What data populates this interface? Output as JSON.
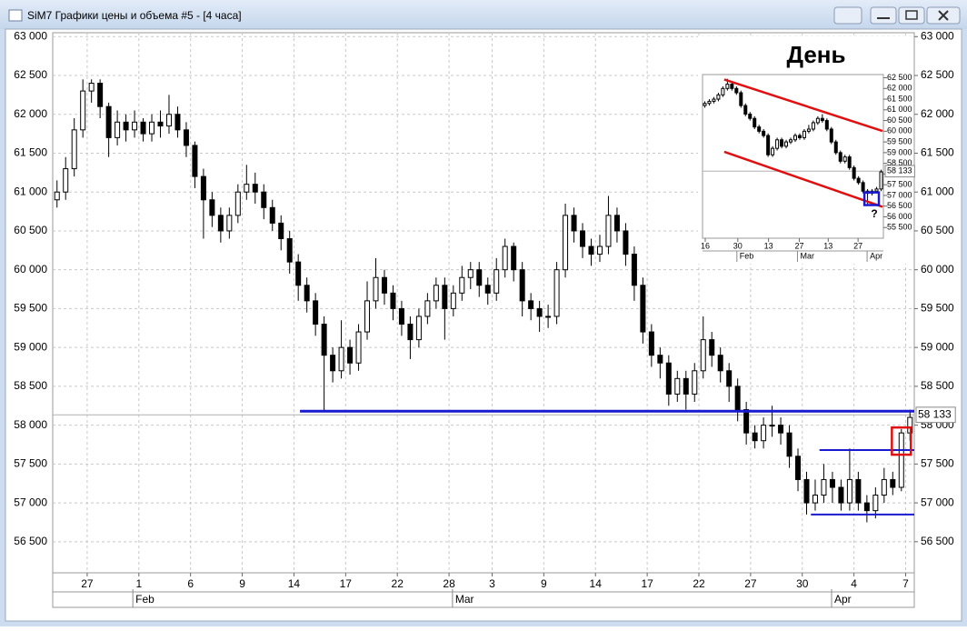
{
  "window": {
    "title": "SiM7 Графики цены и объема #5 - [4 часа]"
  },
  "chart_data": [
    {
      "type": "candlestick",
      "open": [
        60900,
        61000,
        61300,
        61800,
        62300,
        62400,
        62100,
        61700,
        61900,
        61800,
        61900,
        61750,
        61900,
        61850,
        62000,
        61800,
        61600,
        61200,
        60900,
        60700,
        60500,
        60700,
        61000,
        61100,
        61000,
        60800,
        60600,
        60400,
        60100,
        59800,
        59600,
        59300,
        58900,
        58700,
        59000,
        58800,
        59200,
        59600,
        59900,
        59700,
        59500,
        59300,
        59100,
        59400,
        59600,
        59800,
        59500,
        59700,
        59900,
        60000,
        59800,
        59700,
        60000,
        60300,
        60000,
        59600,
        59500,
        59400,
        59400,
        60000,
        60700,
        60500,
        60300,
        60200,
        60300,
        60700,
        60500,
        60200,
        59800,
        59200,
        58900,
        58800,
        58400,
        58600,
        58400,
        58700,
        59100,
        58900,
        58700,
        58500,
        58200,
        57900,
        57800,
        58000,
        58000,
        57900,
        57600,
        57300,
        57000,
        57100,
        57300,
        57200,
        57000,
        57300,
        57000,
        56900,
        57100,
        57300,
        57200,
        57900
      ],
      "high": [
        61150,
        61450,
        61950,
        62450,
        62450,
        62450,
        62150,
        62050,
        62000,
        62050,
        61950,
        62000,
        62050,
        62250,
        62100,
        61900,
        61650,
        61300,
        61000,
        60800,
        60800,
        61100,
        61350,
        61250,
        61100,
        60900,
        60700,
        60500,
        60200,
        59900,
        59700,
        59400,
        59000,
        59350,
        59100,
        59300,
        59850,
        60150,
        60000,
        59800,
        59600,
        59400,
        59500,
        59700,
        59900,
        59900,
        59800,
        60050,
        60100,
        60100,
        59900,
        60150,
        60400,
        60350,
        60100,
        59700,
        59600,
        59550,
        60100,
        60850,
        60800,
        60600,
        60400,
        60450,
        60950,
        60800,
        60600,
        60300,
        59900,
        59300,
        59000,
        58900,
        58700,
        58700,
        58800,
        59400,
        59200,
        59000,
        58800,
        58600,
        58300,
        58000,
        58100,
        58250,
        58100,
        58000,
        57700,
        57400,
        57300,
        57500,
        57400,
        57300,
        57700,
        57400,
        57100,
        57200,
        57450,
        57400,
        57950,
        58200
      ],
      "low": [
        60800,
        60900,
        61200,
        61700,
        62150,
        61950,
        61450,
        61600,
        61650,
        61700,
        61650,
        61650,
        61700,
        61750,
        61700,
        61450,
        61050,
        60400,
        60550,
        60350,
        60400,
        60600,
        60900,
        60850,
        60650,
        60500,
        60250,
        59950,
        59600,
        59450,
        59150,
        58180,
        58550,
        58600,
        58650,
        58700,
        59100,
        59500,
        59550,
        59350,
        59150,
        58850,
        59000,
        59300,
        59500,
        59100,
        59400,
        59600,
        59750,
        59650,
        59550,
        59600,
        59900,
        59850,
        59400,
        59350,
        59200,
        59250,
        59300,
        59900,
        60350,
        60150,
        60050,
        60100,
        60200,
        60350,
        60050,
        59600,
        59050,
        58750,
        58600,
        58250,
        58300,
        58200,
        58300,
        58600,
        58750,
        58550,
        58300,
        58050,
        57750,
        57700,
        57700,
        57850,
        57750,
        57450,
        57150,
        56850,
        56900,
        57000,
        57000,
        56900,
        56900,
        56900,
        56750,
        56800,
        57000,
        57100,
        57150,
        57800
      ],
      "close": [
        61000,
        61300,
        61800,
        62300,
        62400,
        62100,
        61700,
        61900,
        61800,
        61900,
        61750,
        61900,
        61850,
        62000,
        61800,
        61600,
        61200,
        60900,
        60700,
        60500,
        60700,
        61000,
        61100,
        61000,
        60800,
        60600,
        60400,
        60100,
        59800,
        59600,
        59300,
        58900,
        58700,
        59000,
        58800,
        59200,
        59600,
        59900,
        59700,
        59500,
        59300,
        59100,
        59400,
        59600,
        59800,
        59500,
        59700,
        59900,
        60000,
        59800,
        59700,
        60000,
        60300,
        60000,
        59600,
        59500,
        59400,
        59400,
        60000,
        60700,
        60500,
        60300,
        60200,
        60300,
        60700,
        60500,
        60200,
        59800,
        59200,
        58900,
        58800,
        58400,
        58600,
        58400,
        58700,
        59100,
        58900,
        58700,
        58500,
        58200,
        57900,
        57800,
        58000,
        58000,
        57900,
        57600,
        57300,
        57000,
        57100,
        57300,
        57200,
        57000,
        57300,
        57000,
        56900,
        57100,
        57300,
        57200,
        57900,
        58100
      ],
      "xlim": [
        0,
        100
      ],
      "ylim": [
        56100,
        63050
      ],
      "yticks": [
        {
          "value": 56500,
          "label": "56 500"
        },
        {
          "value": 57000,
          "label": "57 000"
        },
        {
          "value": 57500,
          "label": "57 500"
        },
        {
          "value": 58000,
          "label": "58 000"
        },
        {
          "value": 58500,
          "label": "58 500"
        },
        {
          "value": 59000,
          "label": "59 000"
        },
        {
          "value": 59500,
          "label": "59 500"
        },
        {
          "value": 60000,
          "label": "60 000"
        },
        {
          "value": 60500,
          "label": "60 500"
        },
        {
          "value": 61000,
          "label": "61 000"
        },
        {
          "value": 61500,
          "label": "61 500"
        },
        {
          "value": 62000,
          "label": "62 000"
        },
        {
          "value": 62500,
          "label": "62 500"
        },
        {
          "value": 63000,
          "label": "63 000"
        }
      ],
      "xticks": [
        {
          "value": 4,
          "label": "27"
        },
        {
          "value": 10,
          "label": "1"
        },
        {
          "value": 16,
          "label": "6"
        },
        {
          "value": 22,
          "label": "9"
        },
        {
          "value": 28,
          "label": "14"
        },
        {
          "value": 34,
          "label": "17"
        },
        {
          "value": 40,
          "label": "22"
        },
        {
          "value": 46,
          "label": "28"
        },
        {
          "value": 51,
          "label": "3"
        },
        {
          "value": 57,
          "label": "9"
        },
        {
          "value": 63,
          "label": "14"
        },
        {
          "value": 69,
          "label": "17"
        },
        {
          "value": 75,
          "label": "22"
        },
        {
          "value": 81,
          "label": "27"
        },
        {
          "value": 87,
          "label": "30"
        },
        {
          "value": 93,
          "label": "4"
        },
        {
          "value": 99,
          "label": "7"
        }
      ],
      "months": [
        {
          "value": 9.3,
          "label": "Feb"
        },
        {
          "value": 46.4,
          "label": "Mar"
        },
        {
          "value": 90.4,
          "label": "Apr"
        }
      ],
      "grid": true,
      "up_color": "#ffffff",
      "down_color": "#000000",
      "last_price": {
        "value": 58133,
        "label": "58 133"
      },
      "hlines": [
        {
          "value": 58180,
          "from": 28.7,
          "color": "#1a1ad0"
        },
        {
          "value": 57680,
          "from": 89,
          "color": "#1a1ad0"
        },
        {
          "value": 56850,
          "from": 88,
          "color": "#1a1ad0"
        }
      ],
      "highlight_box": {
        "x": [
          97.4,
          99.6
        ],
        "y": [
          57620,
          57970
        ],
        "color": "#e01010"
      }
    },
    {
      "type": "candlestick",
      "title": "День",
      "open": [
        61200,
        61300,
        61400,
        61500,
        61700,
        62000,
        62200,
        62000,
        61800,
        61200,
        60800,
        60600,
        60200,
        60000,
        59800,
        58900,
        59200,
        59600,
        59300,
        59500,
        59600,
        59800,
        59700,
        60000,
        60100,
        60400,
        60600,
        60500,
        60100,
        59500,
        59000,
        58600,
        58800,
        58300,
        57800,
        57600,
        57200,
        57100,
        57200,
        57300
      ],
      "high": [
        61400,
        61500,
        61600,
        61800,
        62100,
        62450,
        62300,
        62100,
        61900,
        61300,
        60900,
        60700,
        60300,
        60100,
        59900,
        59300,
        59700,
        59700,
        59600,
        59700,
        59900,
        59900,
        60100,
        60300,
        60500,
        60700,
        60800,
        60600,
        60200,
        59600,
        59100,
        58900,
        58900,
        58400,
        57900,
        57700,
        57300,
        57300,
        57400,
        58200
      ],
      "low": [
        61100,
        61200,
        61300,
        61400,
        61600,
        61900,
        61900,
        61700,
        61100,
        60700,
        60500,
        60100,
        59900,
        59700,
        58800,
        58800,
        59100,
        59200,
        59200,
        59400,
        59500,
        59600,
        59600,
        59900,
        60000,
        60300,
        60400,
        60000,
        59400,
        58900,
        58500,
        58500,
        58200,
        57700,
        57500,
        57100,
        56600,
        57000,
        57100,
        57200
      ],
      "close": [
        61300,
        61400,
        61500,
        61700,
        62000,
        62200,
        62000,
        61800,
        61200,
        60800,
        60600,
        60200,
        60000,
        59800,
        58900,
        59200,
        59600,
        59300,
        59500,
        59600,
        59800,
        59700,
        60000,
        60100,
        60400,
        60600,
        60500,
        60100,
        59500,
        59000,
        58600,
        58800,
        58300,
        57800,
        57600,
        57200,
        57100,
        57200,
        57300,
        58100
      ],
      "xlim": [
        0,
        40
      ],
      "ylim": [
        55000,
        62650
      ],
      "yticks": [
        {
          "value": 55500,
          "label": "55 500"
        },
        {
          "value": 56000,
          "label": "56 000"
        },
        {
          "value": 56500,
          "label": "56 500"
        },
        {
          "value": 57000,
          "label": "57 000"
        },
        {
          "value": 57500,
          "label": "57 500"
        },
        {
          "value": 58000,
          "label": "58 000"
        },
        {
          "value": 58500,
          "label": "58 500"
        },
        {
          "value": 59000,
          "label": "59 000"
        },
        {
          "value": 59500,
          "label": "59 500"
        },
        {
          "value": 60000,
          "label": "60 000"
        },
        {
          "value": 60500,
          "label": "60 500"
        },
        {
          "value": 61000,
          "label": "61 000"
        },
        {
          "value": 61500,
          "label": "61 500"
        },
        {
          "value": 62000,
          "label": "62 000"
        },
        {
          "value": 62500,
          "label": "62 500"
        }
      ],
      "xticks": [
        0.6,
        7.8,
        14.6,
        21.4,
        27.8,
        34.4
      ],
      "xtick_labels": [
        "16",
        "30",
        "13",
        "27",
        "13",
        "27"
      ],
      "months": [
        {
          "value": 7.6,
          "label": "Feb"
        },
        {
          "value": 21,
          "label": "Mar"
        },
        {
          "value": 36.4,
          "label": "Apr"
        }
      ],
      "grid": false,
      "up_color": "#ffffff",
      "down_color": "#000000",
      "last_price": {
        "value": 58133,
        "label": "58 133"
      },
      "trend_lines": [
        {
          "x": [
            4.8,
            39.8
          ],
          "y": [
            62420,
            60010
          ],
          "color": "#e01010"
        },
        {
          "x": [
            4.8,
            39.8
          ],
          "y": [
            59040,
            56470
          ],
          "color": "#e01010"
        }
      ],
      "highlight_box": {
        "x": [
          35.8,
          39
        ],
        "y": [
          56550,
          57140
        ],
        "color": "#1a1ad0"
      },
      "annotation": "?"
    }
  ]
}
